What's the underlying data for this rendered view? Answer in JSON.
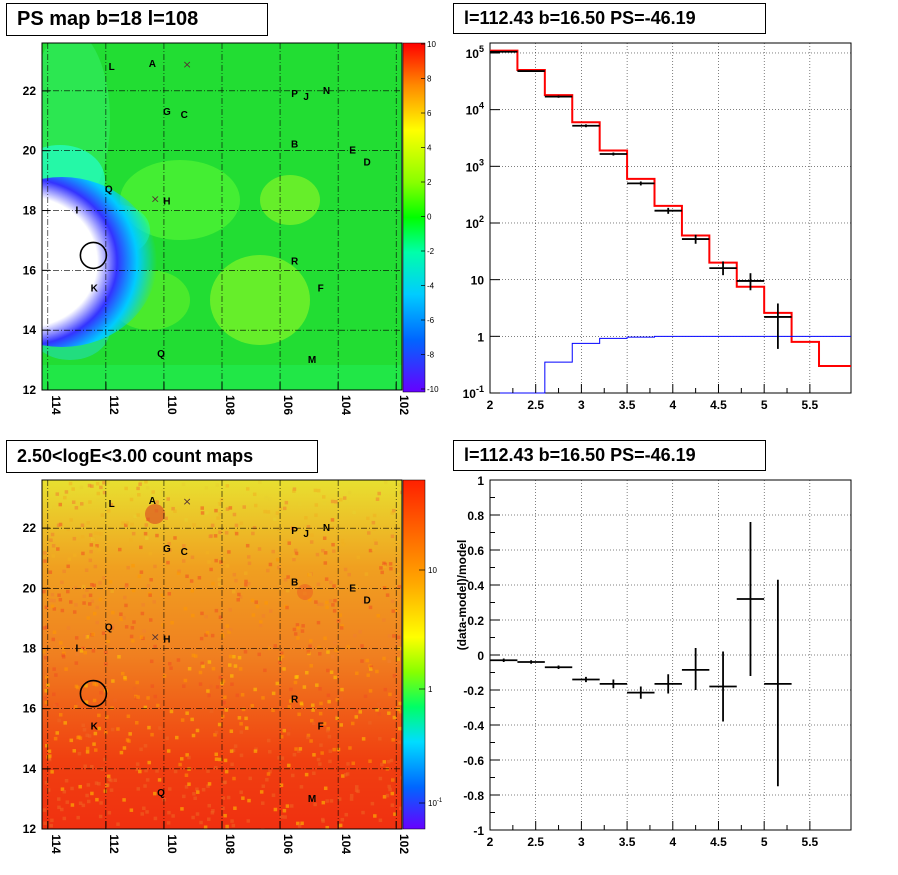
{
  "panels": {
    "ps_map_title": "PS map b=18 l=108",
    "count_map_title": "2.50<logE<3.00 count maps",
    "spectrum_title": "l=112.43 b=16.50 PS=-46.19",
    "residual_title": "l=112.43 b=16.50 PS=-46.19"
  },
  "maps": {
    "x_ticks": [
      "114",
      "112",
      "110",
      "108",
      "106",
      "104",
      "102"
    ],
    "y_ticks": [
      "12",
      "14",
      "16",
      "18",
      "20",
      "22"
    ],
    "ps_palette_ticks": [
      "10",
      "8",
      "6",
      "4",
      "2",
      "0",
      "-2",
      "-4",
      "-6",
      "-8",
      "-10"
    ],
    "count_palette_ticks": [
      "10",
      "1",
      "10-1"
    ],
    "sources": [
      {
        "name": "L",
        "l": 111.8,
        "b": 22.7
      },
      {
        "name": "A",
        "l": 110.4,
        "b": 22.8
      },
      {
        "name": "G",
        "l": 109.9,
        "b": 21.2
      },
      {
        "name": "C",
        "l": 109.3,
        "b": 21.1
      },
      {
        "name": "P",
        "l": 105.5,
        "b": 21.8
      },
      {
        "name": "J",
        "l": 105.1,
        "b": 21.7
      },
      {
        "name": "N",
        "l": 104.4,
        "b": 21.9
      },
      {
        "name": "B",
        "l": 105.5,
        "b": 20.1
      },
      {
        "name": "E",
        "l": 103.5,
        "b": 19.9
      },
      {
        "name": "D",
        "l": 103.0,
        "b": 19.5
      },
      {
        "name": "Q",
        "l": 111.9,
        "b": 18.6
      },
      {
        "name": "H",
        "l": 109.9,
        "b": 18.2
      },
      {
        "name": "I",
        "l": 113.0,
        "b": 17.9
      },
      {
        "name": "R",
        "l": 105.5,
        "b": 16.2
      },
      {
        "name": "F",
        "l": 104.6,
        "b": 15.3
      },
      {
        "name": "K",
        "l": 112.4,
        "b": 15.3
      },
      {
        "name": "Q",
        "l": 110.1,
        "b": 13.1
      },
      {
        "name": "M",
        "l": 104.9,
        "b": 12.9
      }
    ],
    "x_marks": [
      {
        "l": 109.2,
        "b": 22.9
      },
      {
        "l": 110.3,
        "b": 18.4
      }
    ],
    "circle": {
      "l": 112.43,
      "b": 16.5
    }
  },
  "chart_data": [
    {
      "type": "line",
      "title": "l=112.43 b=16.50 PS=-46.19",
      "xlim": [
        2,
        5.95
      ],
      "ylim": [
        0.1,
        150000
      ],
      "log_y": true,
      "x_ticks": [
        "2",
        "2.5",
        "3",
        "3.5",
        "4",
        "4.5",
        "5",
        "5.5"
      ],
      "y_ticks": [
        {
          "base": "10",
          "exp": "5",
          "v": 100000
        },
        {
          "base": "10",
          "exp": "4",
          "v": 10000
        },
        {
          "base": "10",
          "exp": "3",
          "v": 1000
        },
        {
          "base": "10",
          "exp": "2",
          "v": 100
        },
        {
          "base": "10",
          "exp": "",
          "v": 10
        },
        {
          "base": "1",
          "exp": "",
          "v": 1
        },
        {
          "base": "10",
          "exp": "-1",
          "v": 0.1
        }
      ],
      "bin_edges": [
        2.0,
        2.3,
        2.6,
        2.9,
        3.2,
        3.5,
        3.8,
        4.1,
        4.4,
        4.7,
        5.0,
        5.3,
        5.6,
        5.95
      ],
      "series": [
        {
          "color": "#ff0000",
          "values": [
            110000,
            50000,
            18000,
            6000,
            1900,
            600,
            200,
            60,
            20,
            7.5,
            2.6,
            0.8,
            0.3
          ]
        },
        {
          "color": "#0000ff",
          "values": [
            0.1,
            0.1,
            0.35,
            0.75,
            0.92,
            0.97,
            1.0,
            1.0,
            1.0,
            1.0,
            1.0,
            1.0,
            1.0
          ]
        }
      ],
      "points": [
        {
          "x": 2.15,
          "y": 105000,
          "lo": 103000,
          "hi": 107000
        },
        {
          "x": 2.45,
          "y": 48000,
          "lo": 46500,
          "hi": 49500
        },
        {
          "x": 2.75,
          "y": 17000,
          "lo": 16200,
          "hi": 17800
        },
        {
          "x": 3.05,
          "y": 5200,
          "lo": 4900,
          "hi": 5500
        },
        {
          "x": 3.35,
          "y": 1650,
          "lo": 1550,
          "hi": 1750
        },
        {
          "x": 3.65,
          "y": 500,
          "lo": 460,
          "hi": 540
        },
        {
          "x": 3.95,
          "y": 165,
          "lo": 145,
          "hi": 185
        },
        {
          "x": 4.25,
          "y": 52,
          "lo": 43,
          "hi": 62
        },
        {
          "x": 4.55,
          "y": 16,
          "lo": 12,
          "hi": 21
        },
        {
          "x": 4.85,
          "y": 9.5,
          "lo": 6.5,
          "hi": 13
        },
        {
          "x": 5.15,
          "y": 2.2,
          "lo": 0.6,
          "hi": 3.8
        }
      ]
    },
    {
      "type": "scatter",
      "title": "l=112.43 b=16.50 PS=-46.19",
      "ylabel": "(data-model)/model",
      "xlim": [
        2,
        5.95
      ],
      "ylim": [
        -1,
        1
      ],
      "x_ticks": [
        "2",
        "2.5",
        "3",
        "3.5",
        "4",
        "4.5",
        "5",
        "5.5"
      ],
      "y_ticks": [
        "1",
        "0.8",
        "0.6",
        "0.4",
        "0.2",
        "0",
        "-0.2",
        "-0.4",
        "-0.6",
        "-0.8",
        "-1"
      ],
      "points": [
        {
          "x": 2.15,
          "y": -0.03,
          "lo": -0.04,
          "hi": -0.02
        },
        {
          "x": 2.45,
          "y": -0.04,
          "lo": -0.05,
          "hi": -0.03
        },
        {
          "x": 2.75,
          "y": -0.07,
          "lo": -0.08,
          "hi": -0.06
        },
        {
          "x": 3.05,
          "y": -0.14,
          "lo": -0.155,
          "hi": -0.125
        },
        {
          "x": 3.35,
          "y": -0.165,
          "lo": -0.19,
          "hi": -0.14
        },
        {
          "x": 3.65,
          "y": -0.215,
          "lo": -0.25,
          "hi": -0.18
        },
        {
          "x": 3.95,
          "y": -0.165,
          "lo": -0.22,
          "hi": -0.11
        },
        {
          "x": 4.25,
          "y": -0.085,
          "lo": -0.2,
          "hi": 0.04
        },
        {
          "x": 4.55,
          "y": -0.18,
          "lo": -0.38,
          "hi": 0.02
        },
        {
          "x": 4.85,
          "y": 0.32,
          "lo": -0.12,
          "hi": 0.76
        },
        {
          "x": 5.15,
          "y": -0.165,
          "lo": -0.75,
          "hi": 0.43
        }
      ]
    }
  ]
}
